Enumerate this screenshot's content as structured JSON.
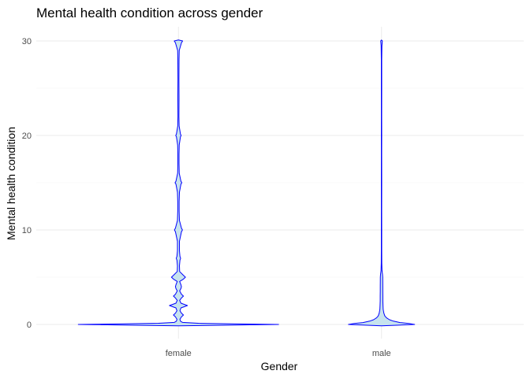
{
  "chart_data": {
    "type": "violin",
    "title": "Mental health condition across gender",
    "xlabel": "Gender",
    "ylabel": "Mental health condition",
    "categories": [
      "female",
      "male"
    ],
    "ylim": [
      -1.5,
      31.5
    ],
    "yticks": [
      0,
      10,
      20,
      30
    ],
    "yticks_minor": [
      5,
      15,
      25
    ],
    "grid": true,
    "legend": "none",
    "colors": {
      "fill": "#c6e3ee",
      "stroke": "#0000ff",
      "grid": "#ebebeb",
      "tick_text": "#4d4d4d"
    },
    "violins": [
      {
        "category": "female",
        "max_halfwidth": 127,
        "profile": [
          [
            -0.15,
            0.0
          ],
          [
            0.0,
            1.0
          ],
          [
            0.06,
            0.55
          ],
          [
            0.12,
            0.2
          ],
          [
            0.22,
            0.04
          ],
          [
            0.35,
            0.02
          ],
          [
            0.55,
            0.015
          ],
          [
            0.8,
            0.03
          ],
          [
            1.0,
            0.05
          ],
          [
            1.2,
            0.03
          ],
          [
            1.45,
            0.015
          ],
          [
            1.75,
            0.025
          ],
          [
            2.0,
            0.09
          ],
          [
            2.25,
            0.025
          ],
          [
            2.55,
            0.012
          ],
          [
            2.8,
            0.03
          ],
          [
            3.0,
            0.05
          ],
          [
            3.2,
            0.03
          ],
          [
            3.55,
            0.012
          ],
          [
            3.8,
            0.025
          ],
          [
            4.0,
            0.03
          ],
          [
            4.2,
            0.025
          ],
          [
            4.55,
            0.012
          ],
          [
            4.8,
            0.05
          ],
          [
            5.0,
            0.07
          ],
          [
            5.2,
            0.05
          ],
          [
            5.6,
            0.012
          ],
          [
            6.2,
            0.01
          ],
          [
            6.8,
            0.015
          ],
          [
            7.0,
            0.022
          ],
          [
            7.2,
            0.015
          ],
          [
            7.8,
            0.01
          ],
          [
            8.8,
            0.01
          ],
          [
            9.8,
            0.03
          ],
          [
            10.0,
            0.04
          ],
          [
            10.2,
            0.03
          ],
          [
            11.0,
            0.01
          ],
          [
            12.0,
            0.007
          ],
          [
            13.0,
            0.007
          ],
          [
            14.0,
            0.01
          ],
          [
            14.85,
            0.025
          ],
          [
            15.0,
            0.034
          ],
          [
            15.15,
            0.025
          ],
          [
            16.0,
            0.008
          ],
          [
            17.0,
            0.006
          ],
          [
            18.0,
            0.006
          ],
          [
            19.0,
            0.008
          ],
          [
            19.85,
            0.02
          ],
          [
            20.0,
            0.027
          ],
          [
            20.15,
            0.02
          ],
          [
            21.0,
            0.007
          ],
          [
            22.0,
            0.005
          ],
          [
            24.0,
            0.006
          ],
          [
            26.0,
            0.005
          ],
          [
            28.0,
            0.006
          ],
          [
            29.0,
            0.008
          ],
          [
            29.8,
            0.03
          ],
          [
            30.0,
            0.042
          ],
          [
            30.1,
            0.0
          ]
        ]
      },
      {
        "category": "male",
        "max_halfwidth": 42,
        "profile": [
          [
            -0.15,
            0.0
          ],
          [
            0.0,
            1.0
          ],
          [
            0.1,
            0.82
          ],
          [
            0.2,
            0.56
          ],
          [
            0.35,
            0.36
          ],
          [
            0.5,
            0.24
          ],
          [
            0.7,
            0.15
          ],
          [
            0.9,
            0.1
          ],
          [
            1.2,
            0.07
          ],
          [
            1.6,
            0.05
          ],
          [
            2.0,
            0.045
          ],
          [
            2.5,
            0.04
          ],
          [
            3.0,
            0.04
          ],
          [
            3.5,
            0.038
          ],
          [
            4.0,
            0.038
          ],
          [
            4.5,
            0.037
          ],
          [
            5.0,
            0.036
          ],
          [
            5.3,
            0.03
          ],
          [
            5.7,
            0.015
          ],
          [
            6.5,
            0.008
          ],
          [
            8.0,
            0.006
          ],
          [
            10.0,
            0.006
          ],
          [
            12.0,
            0.005
          ],
          [
            15.0,
            0.006
          ],
          [
            18.0,
            0.005
          ],
          [
            20.0,
            0.006
          ],
          [
            22.0,
            0.005
          ],
          [
            25.0,
            0.006
          ],
          [
            28.0,
            0.006
          ],
          [
            29.5,
            0.012
          ],
          [
            30.0,
            0.025
          ],
          [
            30.1,
            0.0
          ]
        ]
      }
    ]
  }
}
